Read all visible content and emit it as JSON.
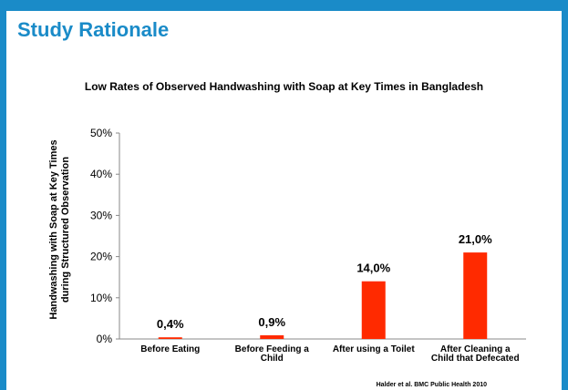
{
  "slide": {
    "title": "Study Rationale",
    "source": "Halder et al. BMC Public Health 2010"
  },
  "colors": {
    "background": "#1a8bc8",
    "title": "#1a8bc8",
    "bar": "#ff2a00"
  },
  "chart_data": {
    "type": "bar",
    "title": "Low Rates of Observed Handwashing with Soap at Key Times in Bangladesh",
    "ylabel": "Handwashing with Soap at Key Times during Structured Observation",
    "ylabel_lines": [
      "Handwashing with Soap at Key Times",
      "during Structured Observation"
    ],
    "xlabel": "",
    "categories": [
      "Before Eating",
      "Before Feeding a Child",
      "After using a Toilet",
      "After Cleaning a Child that Defecated"
    ],
    "category_lines": [
      [
        "Before Eating"
      ],
      [
        "Before Feeding a",
        "Child"
      ],
      [
        "After using a Toilet"
      ],
      [
        "After Cleaning a",
        "Child that Defecated"
      ]
    ],
    "values": [
      0.4,
      0.9,
      14.0,
      21.0
    ],
    "data_labels": [
      "0,4%",
      "0,9%",
      "14,0%",
      "21,0%"
    ],
    "ylim": [
      0,
      50
    ],
    "yticks": [
      0,
      10,
      20,
      30,
      40,
      50
    ],
    "ytick_labels": [
      "0%",
      "10%",
      "20%",
      "30%",
      "40%",
      "50%"
    ],
    "grid": false,
    "legend": "none"
  }
}
